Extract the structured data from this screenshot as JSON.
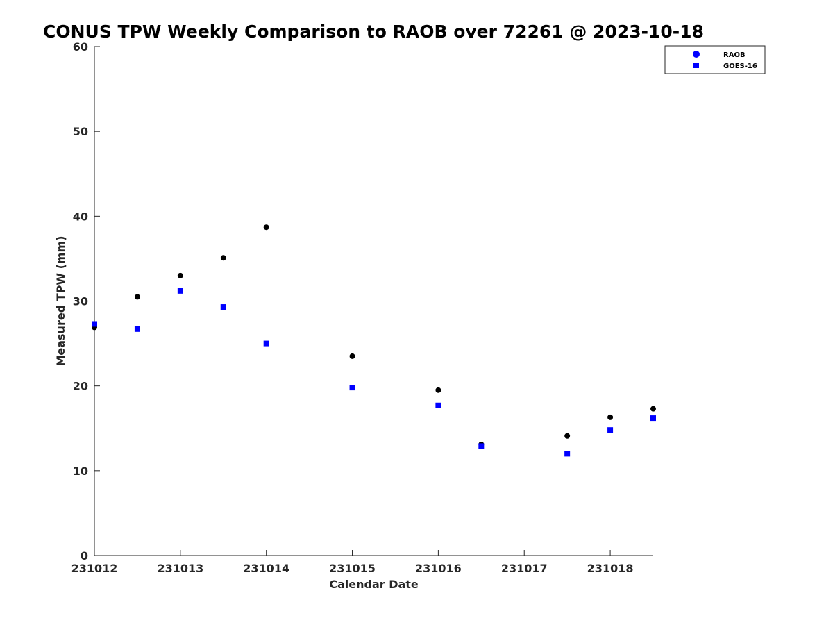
{
  "chart_data": {
    "type": "scatter",
    "title": "CONUS TPW Weekly Comparison to RAOB over 72261 @ 2023-10-18",
    "xlabel": "Calendar Date",
    "ylabel": "Measured TPW (mm)",
    "xlim": [
      231012,
      231018.5
    ],
    "ylim": [
      0,
      60
    ],
    "x_ticks": [
      "231012",
      "231013",
      "231014",
      "231015",
      "231016",
      "231017",
      "231018"
    ],
    "y_ticks": [
      "0",
      "10",
      "20",
      "30",
      "40",
      "50",
      "60"
    ],
    "grid": false,
    "legend_position": "top-right",
    "series": [
      {
        "name": "RAOB",
        "marker": "circle",
        "color": "#000000",
        "legend_color": "#0000ff",
        "x": [
          231012,
          231012.5,
          231013,
          231013.5,
          231014,
          231015,
          231016,
          231016.5,
          231017.5,
          231018,
          231018.5
        ],
        "y": [
          26.9,
          30.5,
          33.0,
          35.1,
          38.7,
          23.5,
          19.5,
          13.1,
          14.1,
          16.3,
          17.3
        ]
      },
      {
        "name": "GOES-16",
        "marker": "square",
        "color": "#0000ff",
        "legend_color": "#0000ff",
        "x": [
          231012,
          231012.5,
          231013,
          231013.5,
          231014,
          231015,
          231016,
          231016.5,
          231017.5,
          231018,
          231018.5
        ],
        "y": [
          27.3,
          26.7,
          31.2,
          29.3,
          25.0,
          19.8,
          17.7,
          12.9,
          12.0,
          14.8,
          16.2
        ]
      }
    ]
  }
}
